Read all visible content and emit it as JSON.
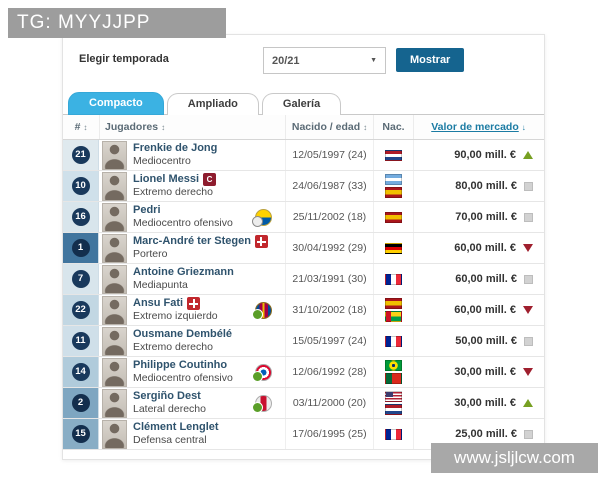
{
  "watermarks": {
    "top": "TG: MYYJJPP",
    "bottom": "www.jsljlcw.com"
  },
  "controls": {
    "season_label": "Elegir temporada",
    "season_value": "20/21",
    "caret_icon": "▼",
    "show_button": "Mostrar"
  },
  "tabs": {
    "compact": "Compacto",
    "extended": "Ampliado",
    "gallery": "Galería"
  },
  "icons": {
    "sort": "↕",
    "value_sort": "↓",
    "captain_letter": "C"
  },
  "colors": {
    "active_tab": "#3bb2e3",
    "button": "#15648f",
    "number_badge": "#19395c",
    "value_header_link": "#1b7ba3",
    "trend_up": "#77a022",
    "trend_down": "#9f1f2e",
    "trend_same": "#d2d2d2",
    "goalkeeper_cell": "#41759e"
  },
  "table": {
    "headers": {
      "number": "#",
      "players": "Jugadores",
      "born": "Nacido / edad",
      "nationality": "Nac.",
      "market_value": "Valor de mercado"
    },
    "rows": [
      {
        "number": "21",
        "name": "Frenkie de Jong",
        "position": "Mediocentro",
        "born": "12/05/1997 (24)",
        "flags": [
          "netherlands"
        ],
        "value": "90,00 mill. €",
        "trend": "up",
        "badge": "",
        "club_icon": ""
      },
      {
        "number": "10",
        "name": "Lionel Messi",
        "position": "Extremo derecho",
        "born": "24/06/1987 (33)",
        "flags": [
          "argentina",
          "spain"
        ],
        "value": "80,00 mill. €",
        "trend": "same",
        "badge": "captain",
        "club_icon": ""
      },
      {
        "number": "16",
        "name": "Pedri",
        "position": "Mediocentro ofensivo",
        "born": "25/11/2002 (18)",
        "flags": [
          "spain"
        ],
        "value": "70,00 mill. €",
        "trend": "same",
        "badge": "",
        "club_icon": "las-palmas"
      },
      {
        "number": "1",
        "name": "Marc-André ter Stegen",
        "position": "Portero",
        "born": "30/04/1992 (29)",
        "flags": [
          "germany"
        ],
        "value": "60,00 mill. €",
        "trend": "down",
        "badge": "injury",
        "club_icon": ""
      },
      {
        "number": "7",
        "name": "Antoine Griezmann",
        "position": "Mediapunta",
        "born": "21/03/1991 (30)",
        "flags": [
          "france"
        ],
        "value": "60,00 mill. €",
        "trend": "same",
        "badge": "",
        "club_icon": ""
      },
      {
        "number": "22",
        "name": "Ansu Fati",
        "position": "Extremo izquierdo",
        "born": "31/10/2002 (18)",
        "flags": [
          "spain",
          "guinea-bissau"
        ],
        "value": "60,00 mill. €",
        "trend": "down",
        "badge": "injury",
        "club_icon": "barcelona-b"
      },
      {
        "number": "11",
        "name": "Ousmane Dembélé",
        "position": "Extremo derecho",
        "born": "15/05/1997 (24)",
        "flags": [
          "france"
        ],
        "value": "50,00 mill. €",
        "trend": "same",
        "badge": "",
        "club_icon": ""
      },
      {
        "number": "14",
        "name": "Philippe Coutinho",
        "position": "Mediocentro ofensivo",
        "born": "12/06/1992 (28)",
        "flags": [
          "brazil",
          "portugal"
        ],
        "value": "30,00 mill. €",
        "trend": "down",
        "badge": "",
        "club_icon": "bayern"
      },
      {
        "number": "2",
        "name": "Sergiño Dest",
        "position": "Lateral derecho",
        "born": "03/11/2000 (20)",
        "flags": [
          "usa",
          "netherlands"
        ],
        "value": "30,00 mill. €",
        "trend": "up",
        "badge": "",
        "club_icon": "ajax"
      },
      {
        "number": "15",
        "name": "Clément Lenglet",
        "position": "Defensa central",
        "born": "17/06/1995 (25)",
        "flags": [
          "france"
        ],
        "value": "25,00 mill. €",
        "trend": "same",
        "badge": "",
        "club_icon": ""
      }
    ]
  }
}
